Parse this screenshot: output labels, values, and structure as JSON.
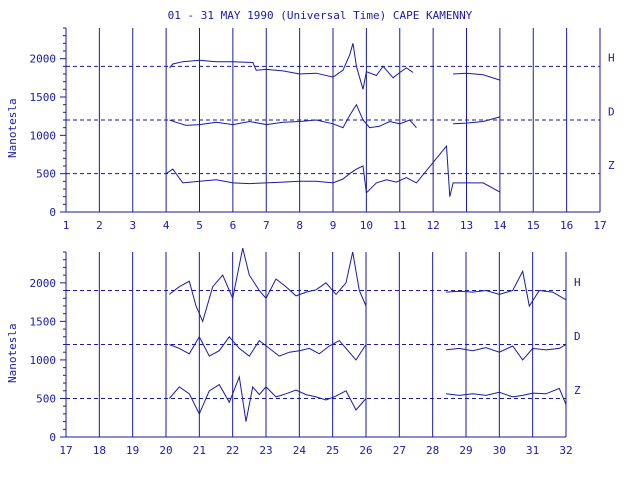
{
  "title": "01 - 31 MAY 1990 (Universal Time) CAPE KAMENNY",
  "colors": {
    "ink": "#1a1aa6",
    "grid": "#1a1aa6"
  },
  "chart_data": [
    {
      "type": "line",
      "ylabel": "Nanotesla",
      "ylim": [
        0,
        2400
      ],
      "yticks": [
        0,
        500,
        1000,
        1500,
        2000
      ],
      "xlim": [
        1,
        17
      ],
      "xticks": [
        1,
        2,
        3,
        4,
        5,
        6,
        7,
        8,
        9,
        10,
        11,
        12,
        13,
        14,
        15,
        16,
        17
      ],
      "baselines": [
        {
          "name": "H",
          "value": 1900
        },
        {
          "name": "D",
          "value": 1200
        },
        {
          "name": "Z",
          "value": 500
        }
      ],
      "series": [
        {
          "name": "H",
          "x": [
            4.1,
            4.2,
            4.5,
            5.0,
            5.5,
            6.0,
            6.6,
            6.7,
            7.0,
            7.5,
            8.0,
            8.5,
            9.0,
            9.3,
            9.5,
            9.6,
            9.7,
            9.9,
            10.0,
            10.3,
            10.5,
            10.8,
            11.0,
            11.2,
            11.4,
            12.6,
            13.0,
            13.5,
            14.0
          ],
          "y": [
            1880,
            1930,
            1960,
            1980,
            1960,
            1960,
            1950,
            1850,
            1860,
            1840,
            1800,
            1810,
            1760,
            1850,
            2050,
            2200,
            1900,
            1600,
            1830,
            1780,
            1900,
            1750,
            1820,
            1880,
            1820,
            1800,
            1810,
            1790,
            1720
          ]
        },
        {
          "name": "D",
          "x": [
            4.1,
            4.3,
            4.6,
            5.0,
            5.5,
            6.0,
            6.5,
            7.0,
            7.5,
            8.0,
            8.5,
            9.0,
            9.3,
            9.5,
            9.7,
            9.9,
            10.1,
            10.4,
            10.7,
            11.0,
            11.3,
            11.5,
            12.6,
            13.0,
            13.5,
            14.0
          ],
          "y": [
            1200,
            1170,
            1130,
            1140,
            1170,
            1140,
            1180,
            1140,
            1170,
            1180,
            1200,
            1150,
            1100,
            1260,
            1400,
            1200,
            1100,
            1120,
            1180,
            1150,
            1200,
            1100,
            1150,
            1160,
            1180,
            1240
          ]
        },
        {
          "name": "Z",
          "x": [
            4.0,
            4.2,
            4.5,
            5.0,
            5.5,
            6.0,
            6.5,
            7.0,
            7.5,
            8.0,
            8.5,
            9.0,
            9.3,
            9.5,
            9.7,
            9.9,
            10.0,
            10.3,
            10.6,
            10.9,
            11.2,
            11.5,
            12.4,
            12.5,
            12.6,
            13.0,
            13.5,
            14.0
          ],
          "y": [
            500,
            560,
            380,
            400,
            420,
            380,
            370,
            380,
            390,
            400,
            400,
            380,
            430,
            500,
            560,
            600,
            250,
            380,
            420,
            390,
            450,
            380,
            860,
            200,
            380,
            380,
            380,
            260
          ]
        }
      ]
    },
    {
      "type": "line",
      "ylabel": "Nanotesla",
      "ylim": [
        0,
        2400
      ],
      "yticks": [
        0,
        500,
        1000,
        1500,
        2000
      ],
      "xlim": [
        17,
        32
      ],
      "xticks": [
        17,
        18,
        19,
        20,
        21,
        22,
        23,
        24,
        25,
        26,
        27,
        28,
        29,
        30,
        31,
        32
      ],
      "baselines": [
        {
          "name": "H",
          "value": 1900
        },
        {
          "name": "D",
          "value": 1200
        },
        {
          "name": "Z",
          "value": 500
        }
      ],
      "series": [
        {
          "name": "H",
          "x": [
            20.1,
            20.4,
            20.7,
            20.9,
            21.1,
            21.4,
            21.7,
            22.0,
            22.3,
            22.5,
            22.8,
            23.0,
            23.3,
            23.6,
            23.9,
            24.2,
            24.5,
            24.8,
            25.1,
            25.4,
            25.6,
            25.8,
            26.0,
            28.4,
            28.8,
            29.2,
            29.6,
            30.0,
            30.4,
            30.7,
            30.9,
            31.2,
            31.6,
            32.0
          ],
          "y": [
            1850,
            1950,
            2020,
            1700,
            1500,
            1950,
            2100,
            1800,
            2450,
            2100,
            1900,
            1800,
            2050,
            1950,
            1830,
            1880,
            1910,
            2000,
            1850,
            2000,
            2400,
            1900,
            1700,
            1880,
            1890,
            1880,
            1900,
            1850,
            1900,
            2150,
            1700,
            1900,
            1880,
            1780
          ]
        },
        {
          "name": "D",
          "x": [
            20.1,
            20.4,
            20.7,
            21.0,
            21.3,
            21.6,
            21.9,
            22.2,
            22.5,
            22.8,
            23.1,
            23.4,
            23.7,
            24.0,
            24.3,
            24.6,
            24.9,
            25.2,
            25.5,
            25.7,
            26.0,
            28.4,
            28.8,
            29.2,
            29.6,
            30.0,
            30.4,
            30.7,
            31.0,
            31.4,
            31.8,
            32.0
          ],
          "y": [
            1200,
            1150,
            1080,
            1300,
            1050,
            1120,
            1300,
            1150,
            1050,
            1250,
            1150,
            1050,
            1100,
            1120,
            1150,
            1080,
            1180,
            1250,
            1100,
            1000,
            1200,
            1130,
            1150,
            1120,
            1160,
            1100,
            1180,
            1000,
            1150,
            1130,
            1150,
            1200
          ]
        },
        {
          "name": "Z",
          "x": [
            20.1,
            20.4,
            20.7,
            21.0,
            21.3,
            21.6,
            21.9,
            22.2,
            22.4,
            22.6,
            22.8,
            23.0,
            23.3,
            23.6,
            23.9,
            24.2,
            24.5,
            24.8,
            25.1,
            25.4,
            25.7,
            26.0,
            28.4,
            28.8,
            29.2,
            29.6,
            30.0,
            30.4,
            30.7,
            31.0,
            31.4,
            31.8,
            32.0
          ],
          "y": [
            500,
            650,
            560,
            300,
            600,
            680,
            450,
            780,
            200,
            650,
            550,
            650,
            520,
            560,
            610,
            550,
            520,
            480,
            530,
            600,
            350,
            500,
            560,
            540,
            560,
            540,
            580,
            520,
            540,
            570,
            560,
            630,
            420
          ]
        }
      ]
    }
  ]
}
